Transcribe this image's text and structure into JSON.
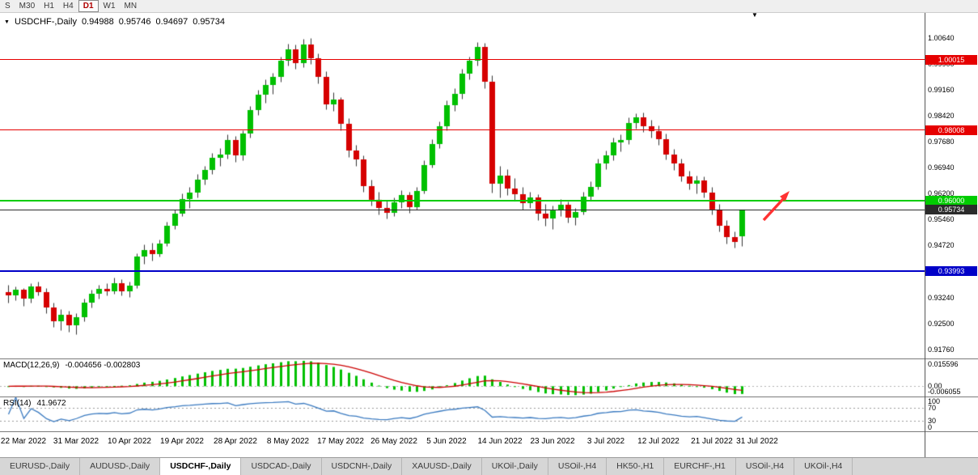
{
  "toolbar": {
    "timeframes": [
      "S",
      "M30",
      "H1",
      "H4",
      "D1",
      "W1",
      "MN"
    ],
    "active_timeframe": "D1"
  },
  "chart_header": {
    "symbol": "USDCHF-,Daily",
    "open": "0.94988",
    "high": "0.95746",
    "low": "0.94697",
    "close": "0.95734"
  },
  "colors": {
    "candle_up": "#00C000",
    "candle_down": "#D60000",
    "wick": "#333333",
    "macd_hist": "#00C000",
    "macd_signal": "#CC0000",
    "macd_zero": "#B0B0B0",
    "rsi_line": "#3A7AC0",
    "rsi_levels": "#9A9A9A",
    "level_red": "#E60000",
    "level_green": "#00CC00",
    "level_blue": "#0000C8",
    "level_black": "#2B2B2B",
    "arrow": "#FF3232"
  },
  "chart_data": {
    "type": "candlestick",
    "title": "USDCHF-,Daily",
    "symbol": "USDCHF",
    "timeframe": "Daily",
    "price_range": [
      0.915,
      1.0135
    ],
    "y_axis_labels": [
      "1.00640",
      "0.99900",
      "0.99160",
      "0.98420",
      "0.97680",
      "0.96940",
      "0.96200",
      "0.95460",
      "0.94720",
      "0.93980",
      "0.93240",
      "0.92500",
      "0.91760"
    ],
    "levels": [
      {
        "name": "resistance-line-upper",
        "label": "1.00015",
        "value": 1.00015,
        "color_key": "level_red",
        "thickness": 1
      },
      {
        "name": "resistance-line-lower",
        "label": "0.98008",
        "value": 0.98008,
        "color_key": "level_red",
        "thickness": 1
      },
      {
        "name": "key-level-line",
        "label": "0.96000",
        "value": 0.96,
        "color_key": "level_green",
        "thickness": 2
      },
      {
        "name": "current-price-line",
        "label": "0.95734",
        "value": 0.95734,
        "color_key": "level_black",
        "thickness": 1
      },
      {
        "name": "support-line",
        "label": "0.93993",
        "value": 0.93993,
        "color_key": "level_blue",
        "thickness": 2
      }
    ],
    "x_axis_labels": [
      {
        "text": "22 Mar 2022",
        "bar": 2
      },
      {
        "text": "31 Mar 2022",
        "bar": 9
      },
      {
        "text": "10 Apr 2022",
        "bar": 16
      },
      {
        "text": "19 Apr 2022",
        "bar": 23
      },
      {
        "text": "28 Apr 2022",
        "bar": 30
      },
      {
        "text": "8 May 2022",
        "bar": 37
      },
      {
        "text": "17 May 2022",
        "bar": 44
      },
      {
        "text": "26 May 2022",
        "bar": 51
      },
      {
        "text": "5 Jun 2022",
        "bar": 58
      },
      {
        "text": "14 Jun 2022",
        "bar": 65
      },
      {
        "text": "23 Jun 2022",
        "bar": 72
      },
      {
        "text": "3 Jul 2022",
        "bar": 79
      },
      {
        "text": "12 Jul 2022",
        "bar": 86
      },
      {
        "text": "21 Jul 2022",
        "bar": 93
      },
      {
        "text": "31 Jul 2022",
        "bar": 99
      }
    ],
    "ohlc": [
      [
        0.934,
        0.936,
        0.931,
        0.933
      ],
      [
        0.933,
        0.9355,
        0.9315,
        0.9345
      ],
      [
        0.9345,
        0.935,
        0.93,
        0.932
      ],
      [
        0.932,
        0.9365,
        0.931,
        0.9355
      ],
      [
        0.9355,
        0.937,
        0.933,
        0.934
      ],
      [
        0.934,
        0.935,
        0.928,
        0.9295
      ],
      [
        0.9295,
        0.931,
        0.924,
        0.9255
      ],
      [
        0.9255,
        0.929,
        0.923,
        0.9275
      ],
      [
        0.9275,
        0.9285,
        0.9225,
        0.9245
      ],
      [
        0.9245,
        0.928,
        0.922,
        0.9268
      ],
      [
        0.9268,
        0.932,
        0.9255,
        0.931
      ],
      [
        0.931,
        0.9345,
        0.9295,
        0.9335
      ],
      [
        0.9335,
        0.936,
        0.932,
        0.9348
      ],
      [
        0.9348,
        0.9365,
        0.933,
        0.9342
      ],
      [
        0.9342,
        0.938,
        0.9335,
        0.9365
      ],
      [
        0.9365,
        0.9375,
        0.933,
        0.9342
      ],
      [
        0.9342,
        0.937,
        0.9325,
        0.9358
      ],
      [
        0.9358,
        0.945,
        0.935,
        0.944
      ],
      [
        0.944,
        0.9475,
        0.942,
        0.946
      ],
      [
        0.946,
        0.948,
        0.943,
        0.9448
      ],
      [
        0.9448,
        0.949,
        0.944,
        0.9478
      ],
      [
        0.9478,
        0.954,
        0.947,
        0.9528
      ],
      [
        0.9528,
        0.9575,
        0.952,
        0.9562
      ],
      [
        0.9562,
        0.962,
        0.9555,
        0.9605
      ],
      [
        0.9605,
        0.964,
        0.958,
        0.9622
      ],
      [
        0.9622,
        0.9675,
        0.961,
        0.966
      ],
      [
        0.966,
        0.97,
        0.9645,
        0.9688
      ],
      [
        0.9688,
        0.9735,
        0.9675,
        0.9722
      ],
      [
        0.9722,
        0.975,
        0.97,
        0.9732
      ],
      [
        0.9732,
        0.979,
        0.972,
        0.9772
      ],
      [
        0.9772,
        0.9785,
        0.971,
        0.9728
      ],
      [
        0.9728,
        0.98,
        0.9715,
        0.9792
      ],
      [
        0.9792,
        0.987,
        0.978,
        0.9858
      ],
      [
        0.9858,
        0.9915,
        0.9845,
        0.9902
      ],
      [
        0.9902,
        0.9945,
        0.988,
        0.993
      ],
      [
        0.993,
        0.9965,
        0.9905,
        0.9952
      ],
      [
        0.9952,
        1.001,
        0.994,
        0.9998
      ],
      [
        0.9998,
        1.0048,
        0.9985,
        1.0032
      ],
      [
        1.0032,
        1.0045,
        0.9975,
        0.9992
      ],
      [
        0.9992,
        1.0062,
        0.998,
        1.0045
      ],
      [
        1.0045,
        1.0064,
        0.999,
        1.0005
      ],
      [
        1.0005,
        1.002,
        0.9935,
        0.9952
      ],
      [
        0.9952,
        0.997,
        0.986,
        0.9875
      ],
      [
        0.9875,
        0.991,
        0.9855,
        0.9888
      ],
      [
        0.9888,
        0.9895,
        0.98,
        0.982
      ],
      [
        0.982,
        0.9835,
        0.9725,
        0.9742
      ],
      [
        0.9742,
        0.976,
        0.97,
        0.9718
      ],
      [
        0.9718,
        0.973,
        0.9625,
        0.9642
      ],
      [
        0.9642,
        0.966,
        0.9585,
        0.9602
      ],
      [
        0.9602,
        0.9625,
        0.956,
        0.9578
      ],
      [
        0.9578,
        0.96,
        0.955,
        0.9565
      ],
      [
        0.9565,
        0.961,
        0.9555,
        0.9595
      ],
      [
        0.9595,
        0.963,
        0.958,
        0.9615
      ],
      [
        0.9615,
        0.9625,
        0.9565,
        0.9582
      ],
      [
        0.9582,
        0.964,
        0.9575,
        0.9628
      ],
      [
        0.9628,
        0.9715,
        0.962,
        0.9702
      ],
      [
        0.9702,
        0.9775,
        0.9695,
        0.9762
      ],
      [
        0.9762,
        0.9825,
        0.975,
        0.9812
      ],
      [
        0.9812,
        0.9885,
        0.98,
        0.9872
      ],
      [
        0.9872,
        0.992,
        0.9855,
        0.9905
      ],
      [
        0.9905,
        0.9975,
        0.989,
        0.9962
      ],
      [
        0.9962,
        1.001,
        0.9945,
        0.9998
      ],
      [
        0.9998,
        1.0052,
        0.9985,
        1.0038
      ],
      [
        1.0038,
        1.0049,
        0.992,
        0.994
      ],
      [
        0.994,
        0.9958,
        0.9622,
        0.9648
      ],
      [
        0.9648,
        0.97,
        0.961,
        0.9672
      ],
      [
        0.9672,
        0.969,
        0.9615,
        0.9635
      ],
      [
        0.9635,
        0.9665,
        0.96,
        0.9618
      ],
      [
        0.9618,
        0.964,
        0.9575,
        0.9592
      ],
      [
        0.9592,
        0.9625,
        0.958,
        0.9608
      ],
      [
        0.9608,
        0.9618,
        0.9545,
        0.9562
      ],
      [
        0.9562,
        0.959,
        0.9528,
        0.9548
      ],
      [
        0.9548,
        0.9585,
        0.952,
        0.9572
      ],
      [
        0.9572,
        0.9605,
        0.9555,
        0.9588
      ],
      [
        0.9588,
        0.9598,
        0.9538,
        0.9552
      ],
      [
        0.9552,
        0.958,
        0.953,
        0.9568
      ],
      [
        0.9568,
        0.9625,
        0.956,
        0.9612
      ],
      [
        0.9612,
        0.9655,
        0.96,
        0.964
      ],
      [
        0.964,
        0.972,
        0.9632,
        0.9705
      ],
      [
        0.9705,
        0.9742,
        0.969,
        0.9728
      ],
      [
        0.9728,
        0.978,
        0.9715,
        0.9765
      ],
      [
        0.9765,
        0.9788,
        0.974,
        0.9772
      ],
      [
        0.9772,
        0.9838,
        0.9762,
        0.9822
      ],
      [
        0.9822,
        0.985,
        0.9805,
        0.9838
      ],
      [
        0.9838,
        0.9852,
        0.9795,
        0.9812
      ],
      [
        0.9812,
        0.983,
        0.978,
        0.9798
      ],
      [
        0.9798,
        0.9815,
        0.976,
        0.9775
      ],
      [
        0.9775,
        0.9792,
        0.9718,
        0.9732
      ],
      [
        0.9732,
        0.9748,
        0.9688,
        0.9705
      ],
      [
        0.9705,
        0.972,
        0.9655,
        0.9668
      ],
      [
        0.9668,
        0.9685,
        0.9632,
        0.9648
      ],
      [
        0.9648,
        0.9672,
        0.962,
        0.9658
      ],
      [
        0.9658,
        0.9668,
        0.9608,
        0.9622
      ],
      [
        0.9622,
        0.964,
        0.956,
        0.9575
      ],
      [
        0.9575,
        0.959,
        0.9512,
        0.9528
      ],
      [
        0.9528,
        0.9545,
        0.9478,
        0.9495
      ],
      [
        0.9495,
        0.9512,
        0.9465,
        0.9482
      ],
      [
        0.94988,
        0.95746,
        0.94697,
        0.95734
      ]
    ],
    "indicators": {
      "macd": {
        "name": "MACD(12,26,9)",
        "values": "-0.004656 -0.002803",
        "params": [
          12,
          26,
          9
        ],
        "axis_labels": [
          "0.015596",
          "0.00",
          "-0.006055"
        ]
      },
      "rsi": {
        "name": "RSI(14)",
        "value": "41.9672",
        "period": 14,
        "axis_labels": [
          "100",
          "70",
          "30",
          "0"
        ],
        "levels": [
          70,
          30
        ]
      }
    }
  },
  "tabs": {
    "active_index": 2,
    "items": [
      "EURUSD-,Daily",
      "AUDUSD-,Daily",
      "USDCHF-,Daily",
      "USDCAD-,Daily",
      "USDCNH-,Daily",
      "XAUUSD-,Daily",
      "UKOil-,Daily",
      "USOil-,H4",
      "HK50-,H1",
      "EURCHF-,H1",
      "USOil-,H4",
      "UKOil-,H4"
    ]
  }
}
